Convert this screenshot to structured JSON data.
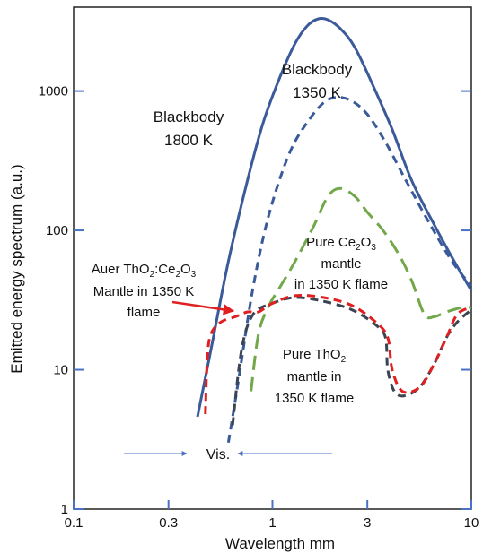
{
  "chart_data": {
    "type": "line",
    "xscale": "log",
    "yscale": "log",
    "xlabel": "Wavelength  mm",
    "ylabel": "Emitted energy spectrum (a.u.)",
    "xlim": [
      0.1,
      10
    ],
    "ylim": [
      1,
      4000
    ],
    "grid": false,
    "x_ticks": [
      {
        "value": 0.1,
        "label": "0.1"
      },
      {
        "value": 0.3,
        "label": "0.3"
      },
      {
        "value": 1,
        "label": "1"
      },
      {
        "value": 3,
        "label": "3"
      },
      {
        "value": 10,
        "label": "10"
      }
    ],
    "y_ticks": [
      {
        "value": 1,
        "label": "1"
      },
      {
        "value": 10,
        "label": "10"
      },
      {
        "value": 100,
        "label": "100"
      },
      {
        "value": 1000,
        "label": "1000"
      }
    ],
    "series": [
      {
        "id": "bb1800",
        "color": "#3b5a9a",
        "dash": "solid",
        "points": [
          [
            0.42,
            4.6
          ],
          [
            0.5,
            16
          ],
          [
            0.6,
            60
          ],
          [
            0.75,
            230
          ],
          [
            0.9,
            600
          ],
          [
            1.1,
            1300
          ],
          [
            1.3,
            2200
          ],
          [
            1.5,
            2950
          ],
          [
            1.7,
            3300
          ],
          [
            1.9,
            3250
          ],
          [
            2.2,
            2800
          ],
          [
            2.6,
            2050
          ],
          [
            3.2,
            1100
          ],
          [
            4,
            530
          ],
          [
            5,
            230
          ],
          [
            6.5,
            110
          ],
          [
            8,
            64
          ],
          [
            10,
            37
          ]
        ]
      },
      {
        "id": "bb1350",
        "color": "#3b5a9a",
        "dash": "dashed",
        "points": [
          [
            0.6,
            3
          ],
          [
            0.68,
            9
          ],
          [
            0.78,
            32
          ],
          [
            0.9,
            90
          ],
          [
            1.05,
            200
          ],
          [
            1.25,
            390
          ],
          [
            1.5,
            600
          ],
          [
            1.8,
            820
          ],
          [
            2.1,
            900
          ],
          [
            2.5,
            850
          ],
          [
            3,
            680
          ],
          [
            3.7,
            430
          ],
          [
            4.6,
            240
          ],
          [
            6,
            120
          ],
          [
            8,
            60
          ],
          [
            10,
            40
          ]
        ]
      },
      {
        "id": "ce2o3",
        "color": "#72a84a",
        "dash": "long-dash",
        "points": [
          [
            0.78,
            7
          ],
          [
            0.85,
            18
          ],
          [
            0.95,
            28
          ],
          [
            1.1,
            40
          ],
          [
            1.3,
            60
          ],
          [
            1.6,
            105
          ],
          [
            1.9,
            175
          ],
          [
            2.2,
            200
          ],
          [
            2.6,
            175
          ],
          [
            3,
            135
          ],
          [
            3.6,
            100
          ],
          [
            4.3,
            68
          ],
          [
            5,
            44
          ],
          [
            5.8,
            25
          ],
          [
            6.5,
            24
          ],
          [
            7.5,
            26
          ],
          [
            9,
            28
          ],
          [
            10,
            28
          ]
        ]
      },
      {
        "id": "tho2",
        "color": "#3a4452",
        "dash": "dashed",
        "points": [
          [
            0.63,
            4
          ],
          [
            0.7,
            14
          ],
          [
            0.8,
            25
          ],
          [
            1,
            30
          ],
          [
            1.3,
            33
          ],
          [
            1.8,
            31
          ],
          [
            2.5,
            27
          ],
          [
            3.3,
            21
          ],
          [
            3.7,
            17
          ],
          [
            3.8,
            10
          ],
          [
            4.1,
            7
          ],
          [
            4.6,
            6.5
          ],
          [
            5.5,
            7.5
          ],
          [
            6.5,
            11
          ],
          [
            7.5,
            17
          ],
          [
            8.5,
            22
          ],
          [
            10,
            27
          ]
        ]
      },
      {
        "id": "auer",
        "color": "#e02020",
        "dash": "dashed",
        "points": [
          [
            0.46,
            4.8
          ],
          [
            0.47,
            12
          ],
          [
            0.49,
            18
          ],
          [
            0.55,
            22
          ],
          [
            0.65,
            24
          ],
          [
            0.75,
            26
          ],
          [
            0.85,
            26
          ],
          [
            1,
            30
          ],
          [
            1.3,
            34
          ],
          [
            1.8,
            33
          ],
          [
            2.5,
            29
          ],
          [
            3.3,
            22
          ],
          [
            3.8,
            17
          ],
          [
            4,
            10
          ],
          [
            4.5,
            7
          ],
          [
            5.5,
            7.5
          ],
          [
            6.5,
            11
          ],
          [
            7.5,
            17
          ],
          [
            8.5,
            25
          ],
          [
            10,
            28
          ]
        ]
      }
    ],
    "annotations": {
      "bb1800_line1": "Blackbody",
      "bb1800_line2": "1800 K",
      "bb1350_line1": "Blackbody",
      "bb1350_line2": "1350 K",
      "ce_line1_pre": "Pure Ce",
      "ce_sub1": "2",
      "ce_mid": "O",
      "ce_sub2": "3",
      "ce_line2": "mantle",
      "ce_line3": "in 1350 K flame",
      "auer_line1_pre": "Auer ThO",
      "auer_sub1": "2",
      "auer_mid": ":Ce",
      "auer_sub2": "2",
      "auer_mid2": "O",
      "auer_sub3": "3",
      "auer_line2": "Mantle in 1350 K",
      "auer_line3": "flame",
      "tho_line1_pre": "Pure ThO",
      "tho_sub": "2",
      "tho_line2": "mantle in",
      "tho_line3": "1350 K flame",
      "visible": "Vis."
    }
  }
}
